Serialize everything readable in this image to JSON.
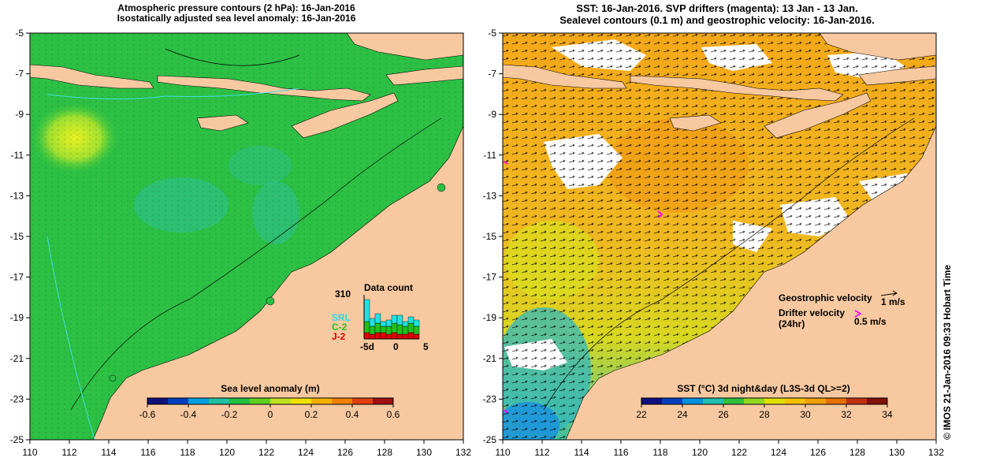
{
  "left_panel": {
    "title_line1": "Atmospheric pressure contours (2 hPa): 16-Jan-2016",
    "title_line2": "Isostatically adjusted sea level anomaly: 16-Jan-2016",
    "colorbar": {
      "label": "Sea level anomaly (m)",
      "ticks": [
        "-0.6",
        "-0.4",
        "-0.2",
        "0",
        "0.2",
        "0.4",
        "0.6"
      ],
      "colors": [
        "#10107a",
        "#0040c0",
        "#00a0e0",
        "#20c0a0",
        "#20c040",
        "#60d020",
        "#c0e020",
        "#f0e000",
        "#f8b000",
        "#f08000",
        "#e04010",
        "#a01010"
      ]
    },
    "data_count": {
      "title": "Data count",
      "max_label": "310",
      "missions": [
        "SRL",
        "C-2",
        "J-2"
      ],
      "mission_colors": [
        "#20e0e0",
        "#20c020",
        "#e00000"
      ],
      "x_ticks": [
        "-5d",
        "0",
        "5"
      ]
    }
  },
  "right_panel": {
    "title_line1": "SST: 16-Jan-2016. SVP drifters (magenta): 13 Jan - 13 Jan.",
    "title_line2": "Sealevel contours (0.1 m) and geostrophic velocity: 16-Jan-2016.",
    "colorbar": {
      "label": "SST (°C) 3d night&day (L3S-3d QL>=2)",
      "ticks": [
        "22",
        "24",
        "26",
        "28",
        "30",
        "32",
        "34"
      ],
      "colors": [
        "#101080",
        "#0040c0",
        "#0090e0",
        "#20c0b0",
        "#30c040",
        "#90d820",
        "#e0e000",
        "#f8c000",
        "#f0a000",
        "#e87000",
        "#c03010",
        "#801000"
      ]
    },
    "legend": {
      "geostrophic_label": "Geostrophic velocity",
      "geostrophic_value": "1 m/s",
      "drifter_label": "Drifter velocity",
      "drifter_sublabel": "(24hr)",
      "drifter_value": "0.5 m/s"
    }
  },
  "axes": {
    "x_ticks": [
      "110",
      "112",
      "114",
      "116",
      "118",
      "120",
      "122",
      "124",
      "126",
      "128",
      "130",
      "132"
    ],
    "y_ticks": [
      "-5",
      "-7",
      "-9",
      "-11",
      "-13",
      "-15",
      "-17",
      "-19",
      "-21",
      "-23",
      "-25"
    ],
    "lon_range": [
      110,
      132
    ],
    "lat_range": [
      -25,
      -5
    ]
  },
  "credit": "© IMOS 21-Jan-2016 09:33 Hobart Time",
  "colors": {
    "land": "#f8c9a0",
    "sea_left": "#28c040",
    "sea_right": "#f0b020",
    "no_data": "#ffffff",
    "drifter": "#ff00ff"
  }
}
